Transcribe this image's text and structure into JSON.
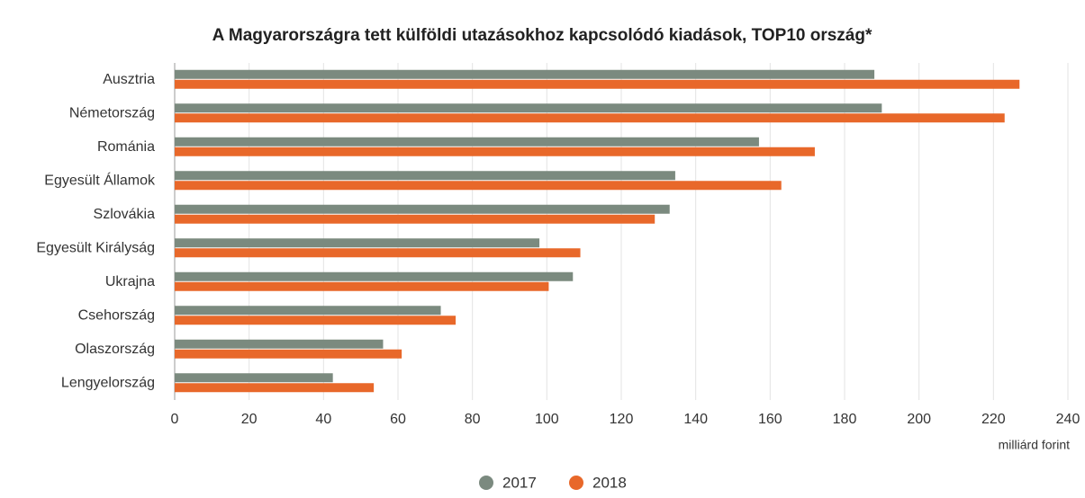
{
  "chart_data": {
    "type": "hbar",
    "title": "A Magyarországra tett külföldi utazásokhoz kapcsolódó kiadások, TOP10 ország*",
    "x_label": "milliárd forint",
    "categories": [
      "Ausztria",
      "Németország",
      "Románia",
      "Egyesült Államok",
      "Szlovákia",
      "Egyesült Királyság",
      "Ukrajna",
      "Csehország",
      "Olaszország",
      "Lengyelország"
    ],
    "series": [
      {
        "name": "2017",
        "color": "#7b8a7f",
        "values": [
          188,
          190,
          157,
          134.5,
          133,
          98,
          107,
          71.5,
          56,
          42.5
        ]
      },
      {
        "name": "2018",
        "color": "#e8682a",
        "values": [
          227,
          223,
          172,
          163,
          129,
          109,
          100.5,
          75.5,
          61,
          53.5
        ]
      }
    ],
    "xlim": [
      0,
      240
    ],
    "xticks": [
      0,
      20,
      40,
      60,
      80,
      100,
      120,
      140,
      160,
      180,
      200,
      220,
      240
    ],
    "grid": true
  }
}
